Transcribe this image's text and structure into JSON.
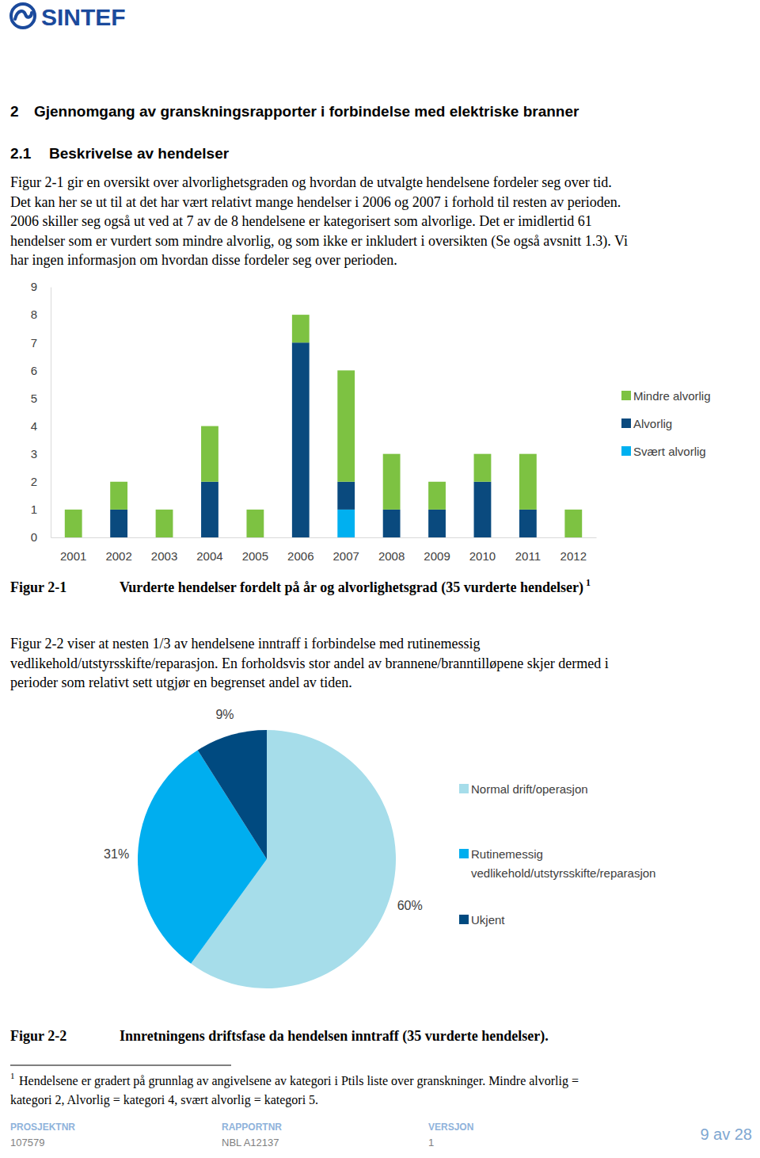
{
  "header": {
    "logo": "SINTEF"
  },
  "headings": [
    {
      "number": "2",
      "title": "Gjennomgang av granskningsrapporter i forbindelse med elektriske branner"
    },
    {
      "number": "2.1",
      "title": "Beskrivelse av hendelser"
    }
  ],
  "paragraphs": [
    [
      "Figur 2-1 gir en oversikt over alvorlighetsgraden og hvordan de utvalgte hendelsene fordeler seg over tid.",
      "Det kan her se ut til at det har vært relativt mange hendelser i 2006 og 2007 i forhold til resten av perioden.",
      "2006 skiller seg også ut ved at 7 av de 8 hendelsene er kategorisert som alvorlige. Det er imidlertid 61",
      "hendelser som er vurdert som mindre alvorlig, og som ikke er inkludert i oversikten (Se også avsnitt 1.3). Vi",
      "har ingen informasjon om hvordan disse fordeler seg over perioden."
    ],
    [
      "Figur 2-2 viser at nesten 1/3 av hendelsene inntraff i forbindelse med rutinemessig",
      "vedlikehold/utstyrsskifte/reparasjon. En forholdsvis stor andel av brannene/branntilløpene skjer dermed i",
      "perioder som relativt sett utgjør en begrenset andel av tiden."
    ]
  ],
  "chart_data": [
    {
      "type": "bar",
      "stacked": true,
      "grid": false,
      "legend": "right",
      "categories": [
        "2001",
        "2002",
        "2003",
        "2004",
        "2005",
        "2006",
        "2007",
        "2008",
        "2009",
        "2010",
        "2011",
        "2012"
      ],
      "series": [
        {
          "name": "Mindre alvorlig",
          "color": "#7DC242",
          "values": [
            1,
            1,
            1,
            2,
            1,
            1,
            4,
            2,
            1,
            1,
            2,
            1
          ]
        },
        {
          "name": "Alvorlig",
          "color": "#0A4A7E",
          "values": [
            0,
            1,
            0,
            2,
            0,
            7,
            1,
            1,
            1,
            2,
            1,
            0
          ]
        },
        {
          "name": "Svært alvorlig",
          "color": "#00B0F0",
          "values": [
            0,
            0,
            0,
            0,
            0,
            0,
            1,
            0,
            0,
            0,
            0,
            0
          ]
        }
      ],
      "ylim": [
        0,
        9
      ],
      "yticks": [
        0,
        1,
        2,
        3,
        4,
        5,
        6,
        7,
        8,
        9
      ]
    },
    {
      "type": "pie",
      "legend": "right",
      "data_labels": true,
      "categories": [
        "Normal drift/operasjon",
        "Rutinemessig vedlikehold/utstyrsskifte/reparasjon",
        "Ukjent"
      ],
      "values": [
        60,
        31,
        9
      ],
      "value_labels": [
        "60%",
        "31%",
        "9%"
      ],
      "colors": [
        "#A6DDEA",
        "#00AEEF",
        "#004A80"
      ]
    }
  ],
  "captions": [
    {
      "label": "Figur 2-1",
      "text": "Vurderte hendelser fordelt på år og alvorlighetsgrad (35 vurderte hendelser)",
      "footnote_ref": "1"
    },
    {
      "label": "Figur 2-2",
      "text": "Innretningens driftsfase da hendelsen inntraff (35 vurderte hendelser)."
    }
  ],
  "footnote": {
    "ref": "1",
    "lines": [
      "Hendelsene er gradert på grunnlag av angivelsene av kategori i Ptils liste over granskninger. Mindre alvorlig =",
      "kategori 2, Alvorlig = kategori 4, svært alvorlig = kategori 5."
    ]
  },
  "footer": {
    "fields": [
      {
        "label": "PROSJEKTNR",
        "value": "107579"
      },
      {
        "label": "RAPPORTNR",
        "value": "NBL A12137"
      },
      {
        "label": "VERSJON",
        "value": "1"
      }
    ],
    "page": "9 av 28"
  }
}
